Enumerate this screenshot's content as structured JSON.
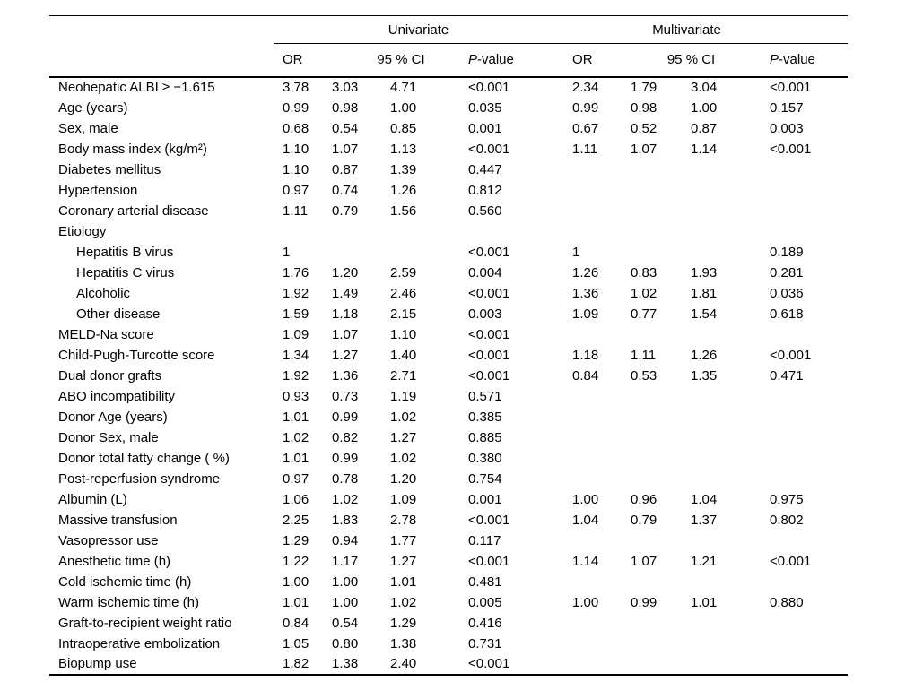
{
  "table": {
    "group_headers": {
      "univariate": "Univariate",
      "multivariate": "Multivariate"
    },
    "col_headers": {
      "or": "OR",
      "ci": "95 % CI",
      "p_prefix": "P",
      "p_suffix": "-value"
    },
    "rows": [
      {
        "label": "Neohepatic ALBI ≥ −1.615",
        "indent": false,
        "uni": [
          "3.78",
          "3.03",
          "4.71",
          "<0.001"
        ],
        "multi": [
          "2.34",
          "1.79",
          "3.04",
          "<0.001"
        ]
      },
      {
        "label": "Age (years)",
        "indent": false,
        "uni": [
          "0.99",
          "0.98",
          "1.00",
          "0.035"
        ],
        "multi": [
          "0.99",
          "0.98",
          "1.00",
          "0.157"
        ]
      },
      {
        "label": "Sex, male",
        "indent": false,
        "uni": [
          "0.68",
          "0.54",
          "0.85",
          "0.001"
        ],
        "multi": [
          "0.67",
          "0.52",
          "0.87",
          "0.003"
        ]
      },
      {
        "label": "Body mass index (kg/m²)",
        "indent": false,
        "uni": [
          "1.10",
          "1.07",
          "1.13",
          "<0.001"
        ],
        "multi": [
          "1.11",
          "1.07",
          "1.14",
          "<0.001"
        ]
      },
      {
        "label": "Diabetes mellitus",
        "indent": false,
        "uni": [
          "1.10",
          "0.87",
          "1.39",
          "0.447"
        ],
        "multi": [
          "",
          "",
          "",
          ""
        ]
      },
      {
        "label": "Hypertension",
        "indent": false,
        "uni": [
          "0.97",
          "0.74",
          "1.26",
          "0.812"
        ],
        "multi": [
          "",
          "",
          "",
          ""
        ]
      },
      {
        "label": "Coronary arterial disease",
        "indent": false,
        "uni": [
          "1.11",
          "0.79",
          "1.56",
          "0.560"
        ],
        "multi": [
          "",
          "",
          "",
          ""
        ]
      },
      {
        "label": "Etiology",
        "indent": false,
        "uni": [
          "",
          "",
          "",
          ""
        ],
        "multi": [
          "",
          "",
          "",
          ""
        ]
      },
      {
        "label": "Hepatitis B virus",
        "indent": true,
        "uni": [
          "1",
          "",
          "",
          "<0.001"
        ],
        "multi": [
          "1",
          "",
          "",
          "0.189"
        ]
      },
      {
        "label": "Hepatitis C virus",
        "indent": true,
        "uni": [
          "1.76",
          "1.20",
          "2.59",
          "0.004"
        ],
        "multi": [
          "1.26",
          "0.83",
          "1.93",
          "0.281"
        ]
      },
      {
        "label": "Alcoholic",
        "indent": true,
        "uni": [
          "1.92",
          "1.49",
          "2.46",
          "<0.001"
        ],
        "multi": [
          "1.36",
          "1.02",
          "1.81",
          "0.036"
        ]
      },
      {
        "label": "Other disease",
        "indent": true,
        "uni": [
          "1.59",
          "1.18",
          "2.15",
          "0.003"
        ],
        "multi": [
          "1.09",
          "0.77",
          "1.54",
          "0.618"
        ]
      },
      {
        "label": "MELD-Na score",
        "indent": false,
        "uni": [
          "1.09",
          "1.07",
          "1.10",
          "<0.001"
        ],
        "multi": [
          "",
          "",
          "",
          ""
        ]
      },
      {
        "label": "Child-Pugh-Turcotte score",
        "indent": false,
        "uni": [
          "1.34",
          "1.27",
          "1.40",
          "<0.001"
        ],
        "multi": [
          "1.18",
          "1.11",
          "1.26",
          "<0.001"
        ]
      },
      {
        "label": "Dual donor grafts",
        "indent": false,
        "uni": [
          "1.92",
          "1.36",
          "2.71",
          "<0.001"
        ],
        "multi": [
          "0.84",
          "0.53",
          "1.35",
          "0.471"
        ]
      },
      {
        "label": "ABO incompatibility",
        "indent": false,
        "uni": [
          "0.93",
          "0.73",
          "1.19",
          "0.571"
        ],
        "multi": [
          "",
          "",
          "",
          ""
        ]
      },
      {
        "label": "Donor Age (years)",
        "indent": false,
        "uni": [
          "1.01",
          "0.99",
          "1.02",
          "0.385"
        ],
        "multi": [
          "",
          "",
          "",
          ""
        ]
      },
      {
        "label": "Donor Sex, male",
        "indent": false,
        "uni": [
          "1.02",
          "0.82",
          "1.27",
          "0.885"
        ],
        "multi": [
          "",
          "",
          "",
          ""
        ]
      },
      {
        "label": "Donor total fatty change ( %)",
        "indent": false,
        "uni": [
          "1.01",
          "0.99",
          "1.02",
          "0.380"
        ],
        "multi": [
          "",
          "",
          "",
          ""
        ]
      },
      {
        "label": "Post-reperfusion syndrome",
        "indent": false,
        "uni": [
          "0.97",
          "0.78",
          "1.20",
          "0.754"
        ],
        "multi": [
          "",
          "",
          "",
          ""
        ]
      },
      {
        "label": "Albumin (L)",
        "indent": false,
        "uni": [
          "1.06",
          "1.02",
          "1.09",
          "0.001"
        ],
        "multi": [
          "1.00",
          "0.96",
          "1.04",
          "0.975"
        ]
      },
      {
        "label": "Massive transfusion",
        "indent": false,
        "uni": [
          "2.25",
          "1.83",
          "2.78",
          "<0.001"
        ],
        "multi": [
          "1.04",
          "0.79",
          "1.37",
          "0.802"
        ]
      },
      {
        "label": "Vasopressor use",
        "indent": false,
        "uni": [
          "1.29",
          "0.94",
          "1.77",
          "0.117"
        ],
        "multi": [
          "",
          "",
          "",
          ""
        ]
      },
      {
        "label": "Anesthetic time (h)",
        "indent": false,
        "uni": [
          "1.22",
          "1.17",
          "1.27",
          "<0.001"
        ],
        "multi": [
          "1.14",
          "1.07",
          "1.21",
          "<0.001"
        ]
      },
      {
        "label": "Cold ischemic time (h)",
        "indent": false,
        "uni": [
          "1.00",
          "1.00",
          "1.01",
          "0.481"
        ],
        "multi": [
          "",
          "",
          "",
          ""
        ]
      },
      {
        "label": "Warm ischemic time (h)",
        "indent": false,
        "uni": [
          "1.01",
          "1.00",
          "1.02",
          "0.005"
        ],
        "multi": [
          "1.00",
          "0.99",
          "1.01",
          "0.880"
        ]
      },
      {
        "label": "Graft-to-recipient weight ratio",
        "indent": false,
        "uni": [
          "0.84",
          "0.54",
          "1.29",
          "0.416"
        ],
        "multi": [
          "",
          "",
          "",
          ""
        ]
      },
      {
        "label": "Intraoperative embolization",
        "indent": false,
        "uni": [
          "1.05",
          "0.80",
          "1.38",
          "0.731"
        ],
        "multi": [
          "",
          "",
          "",
          ""
        ]
      },
      {
        "label": "Biopump use",
        "indent": false,
        "uni": [
          "1.82",
          "1.38",
          "2.40",
          "<0.001"
        ],
        "multi": [
          "",
          "",
          "",
          ""
        ]
      }
    ]
  }
}
